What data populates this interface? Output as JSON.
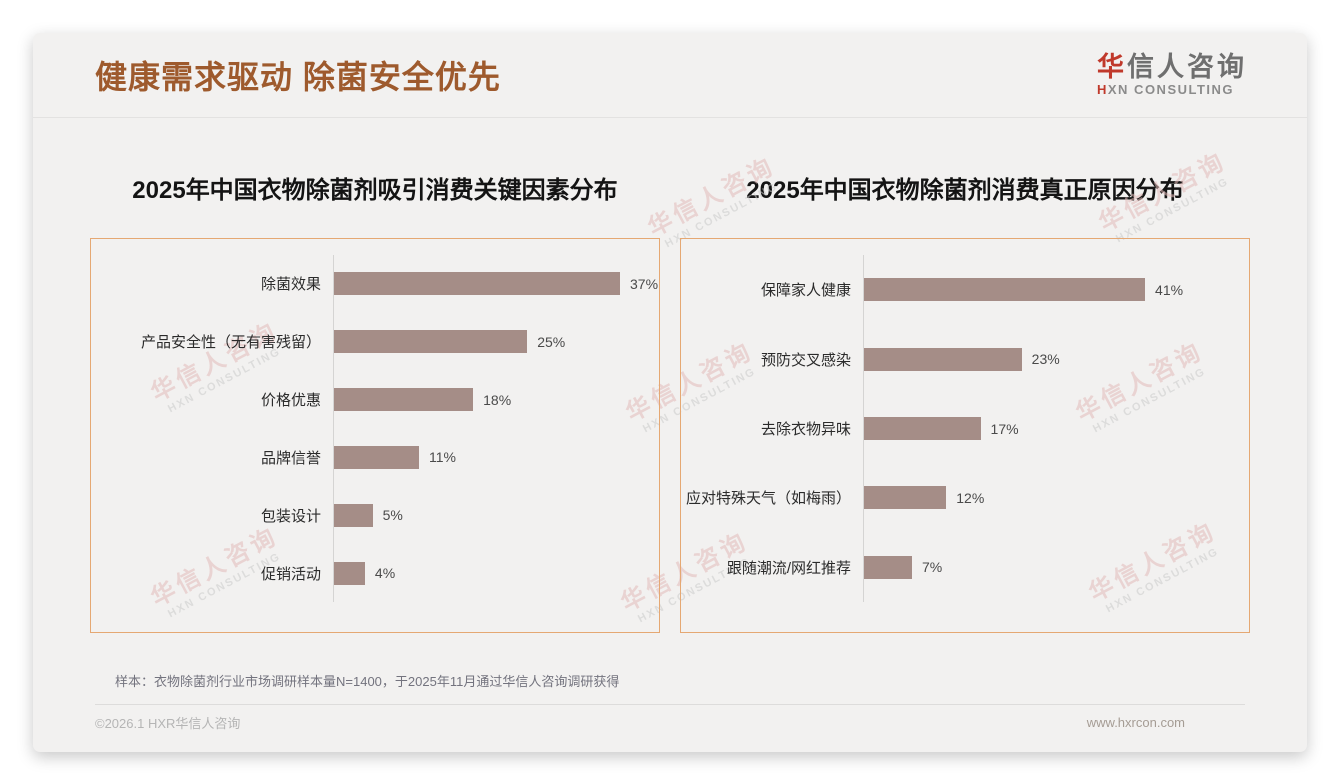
{
  "page": {
    "title": "健康需求驱动 除菌安全优先",
    "logo": {
      "brand_first": "华",
      "brand_rest": "信人咨询",
      "sub_first": "H",
      "sub_rest": "XN CONSULTING"
    },
    "footnote": "样本：衣物除菌剂行业市场调研样本量N=1400，于2025年11月通过华信人咨询调研获得",
    "copyright": "©2026.1 HXR华信人咨询",
    "website": "www.hxrcon.com",
    "watermark": {
      "line1": "华信人咨询",
      "line2": "HXN CONSULTING"
    }
  },
  "colors": {
    "accent_brown": "#9E5A2D",
    "bar_fill": "#A58D87",
    "panel_border": "#E5A873",
    "brand_red": "#C0392B"
  },
  "chart_data": [
    {
      "type": "bar",
      "orientation": "horizontal",
      "title": "2025年中国衣物除菌剂吸引消费关键因素分布",
      "categories": [
        "除菌效果",
        "产品安全性（无有害残留）",
        "价格优惠",
        "品牌信誉",
        "包装设计",
        "促销活动"
      ],
      "values": [
        37,
        25,
        18,
        11,
        5,
        4
      ],
      "unit": "%",
      "data_labels": [
        "37%",
        "25%",
        "18%",
        "11%",
        "5%",
        "4%"
      ],
      "legend": "none",
      "grid": "off"
    },
    {
      "type": "bar",
      "orientation": "horizontal",
      "title": "2025年中国衣物除菌剂消费真正原因分布",
      "categories": [
        "保障家人健康",
        "预防交叉感染",
        "去除衣物异味",
        "应对特殊天气（如梅雨）",
        "跟随潮流/网红推荐"
      ],
      "values": [
        41,
        23,
        17,
        12,
        7
      ],
      "unit": "%",
      "data_labels": [
        "41%",
        "23%",
        "17%",
        "12%",
        "7%"
      ],
      "legend": "none",
      "grid": "off"
    }
  ]
}
